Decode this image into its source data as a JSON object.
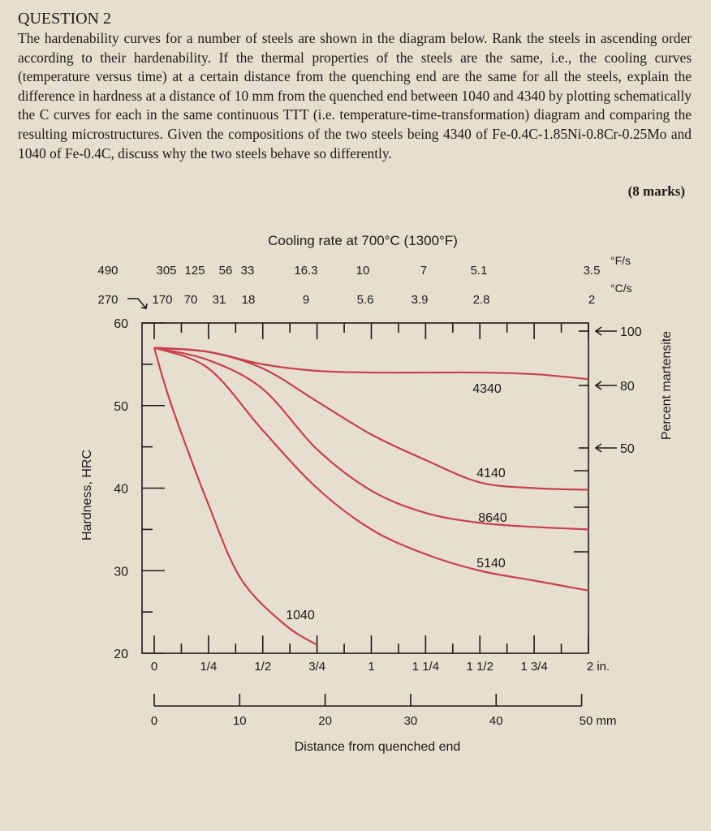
{
  "question": {
    "title": "QUESTION 2",
    "body": "The hardenability curves for a number of steels are shown in the diagram below. Rank the steels in ascending order according to their hardenability. If the thermal properties of the steels are the same, i.e., the cooling curves (temperature versus time) at a certain distance from the quenching end are the same for all the steels, explain the difference in hardness at a distance of 10 mm from the quenched end between 1040 and 4340 by plotting schematically the C curves for each in the same continuous TTT (i.e. temperature-time-transformation) diagram and comparing the resulting microstructures. Given the compositions of the two steels being 4340 of Fe-0.4C-1.85Ni-0.8Cr-0.25Mo and 1040 of Fe-0.4C, discuss why the two steels behave so differently.",
    "marks": "(8 marks)"
  },
  "chart_data": {
    "type": "line",
    "title": "Cooling rate at 700°C (1300°F)",
    "xlabel": "Distance from quenched end",
    "ylabel": "Hardness, HRC",
    "y2label": "Percent martensite",
    "xlim": [
      0,
      2
    ],
    "ylim": [
      20,
      60
    ],
    "y_ticks": [
      "20",
      "30",
      "40",
      "50",
      "60"
    ],
    "x_ticks_in": [
      "0",
      "1/4",
      "1/2",
      "3/4",
      "1",
      "1 1/4",
      "1 1/2",
      "1 3/4",
      "2 in."
    ],
    "x_ticks_mm": [
      "0",
      "10",
      "20",
      "30",
      "40",
      "50 mm"
    ],
    "cooling_rate_F": [
      "490",
      "305",
      "125",
      "56",
      "33",
      "16.3",
      "10",
      "7",
      "5.1",
      "3.5"
    ],
    "cooling_rate_F_unit": "°F/s",
    "cooling_rate_C": [
      "270",
      "170",
      "70",
      "31",
      "18",
      "9",
      "5.6",
      "3.9",
      "2.8",
      "2"
    ],
    "cooling_rate_C_unit": "°C/s",
    "martensite_marks": [
      "100",
      "80",
      "50"
    ],
    "curve_color": "#c8404f",
    "series": [
      {
        "name": "4340",
        "x": [
          0,
          0.25,
          0.5,
          0.75,
          1,
          1.25,
          1.5,
          1.75,
          2
        ],
        "y": [
          57,
          56.5,
          55,
          54.2,
          54,
          54,
          54,
          53.8,
          53.2
        ]
      },
      {
        "name": "4140",
        "x": [
          0,
          0.25,
          0.5,
          0.75,
          1,
          1.25,
          1.5,
          1.75,
          2
        ],
        "y": [
          57,
          56.5,
          54.5,
          50.5,
          46.5,
          43.4,
          40.7,
          40,
          39.8
        ]
      },
      {
        "name": "8640",
        "x": [
          0,
          0.25,
          0.5,
          0.75,
          1,
          1.25,
          1.5,
          1.75,
          2
        ],
        "y": [
          57,
          55.5,
          52,
          44.7,
          39.7,
          37,
          35.8,
          35.3,
          35
        ]
      },
      {
        "name": "5140",
        "x": [
          0,
          0.25,
          0.5,
          0.75,
          1,
          1.25,
          1.5,
          1.75,
          2
        ],
        "y": [
          57,
          54.5,
          47,
          40,
          35,
          32,
          30,
          28.8,
          27.6
        ]
      },
      {
        "name": "1040",
        "x": [
          0,
          0.08,
          0.25,
          0.4,
          0.6,
          0.75
        ],
        "y": [
          57,
          50,
          38,
          29,
          23.5,
          21
        ]
      }
    ]
  }
}
